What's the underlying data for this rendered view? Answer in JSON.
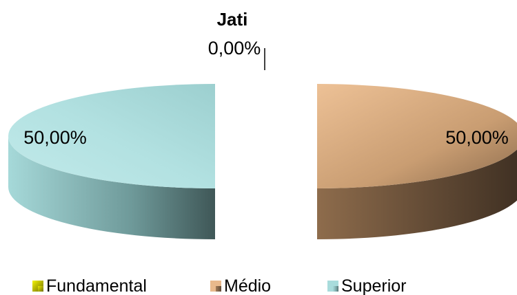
{
  "chart_data": {
    "type": "pie",
    "style": "3d-exploded",
    "title": "Jati",
    "categories": [
      "Fundamental",
      "Médio",
      "Superior"
    ],
    "values": [
      0.0,
      50.0,
      50.0
    ],
    "data_labels": [
      "0,00%",
      "50,00%",
      "50,00%"
    ],
    "colors": [
      "#e0e000",
      "#e8b98c",
      "#a8dcdc"
    ],
    "legend_position": "bottom"
  }
}
